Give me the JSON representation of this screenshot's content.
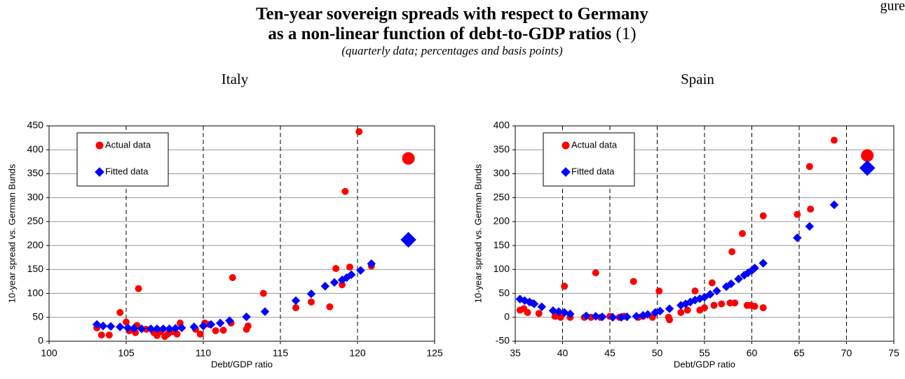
{
  "figure_label": "gure",
  "title_lines": [
    "Ten-year sovereign spreads with respect to Germany",
    "as a non-linear function of debt-to-GDP ratios"
  ],
  "note_marker": "(1)",
  "subtitle": "(quarterly data; percentages and basis points)",
  "chart_data": [
    {
      "type": "scatter",
      "title": "Italy",
      "x_label": "Debt/GDP ratio",
      "y_label": "10-year spread vs. German Bunds",
      "xlim": [
        100,
        125
      ],
      "xticks": [
        100,
        105,
        110,
        115,
        120,
        125
      ],
      "ylim": [
        0,
        450
      ],
      "yticks": [
        0,
        50,
        100,
        150,
        200,
        250,
        300,
        350,
        400,
        450
      ],
      "grid": true,
      "legend": "upper left",
      "series": [
        {
          "name": "Actual data",
          "color": "#ff0000",
          "marker": "circle",
          "x": [
            103.1,
            103.4,
            103.9,
            104.6,
            105.0,
            105.2,
            105.6,
            105.7,
            105.8,
            106.3,
            106.8,
            107.0,
            107.2,
            107.5,
            107.7,
            108.0,
            108.3,
            108.5,
            109.5,
            109.8,
            110.1,
            110.4,
            110.8,
            111.3,
            111.8,
            111.9,
            112.8,
            112.9,
            113.9,
            116.0,
            117.0,
            118.2,
            118.6,
            119.0,
            119.2,
            119.5,
            120.1,
            120.9,
            123.3
          ],
          "values": [
            28,
            13,
            13,
            60,
            40,
            22,
            18,
            33,
            110,
            25,
            18,
            12,
            20,
            10,
            15,
            20,
            15,
            38,
            25,
            15,
            38,
            35,
            22,
            23,
            38,
            133,
            25,
            32,
            100,
            70,
            82,
            72,
            152,
            118,
            313,
            155,
            438,
            157,
            382
          ]
        },
        {
          "name": "Fitted data",
          "color": "#0000ff",
          "marker": "diamond",
          "x": [
            103.1,
            103.5,
            104.0,
            104.6,
            105.1,
            105.5,
            106.0,
            106.6,
            107.0,
            107.4,
            107.8,
            108.2,
            108.6,
            109.4,
            110.0,
            110.5,
            111.1,
            111.7,
            112.8,
            114.0,
            116.0,
            117.0,
            117.9,
            118.5,
            119.0,
            119.3,
            119.6,
            120.2,
            120.9,
            123.3
          ],
          "values": [
            35,
            32,
            31,
            30,
            28,
            27,
            26,
            26,
            26,
            26,
            26,
            27,
            28,
            30,
            32,
            35,
            38,
            43,
            51,
            62,
            85,
            99,
            115,
            123,
            128,
            133,
            139,
            148,
            162,
            212
          ]
        }
      ]
    },
    {
      "type": "scatter",
      "title": "Spain",
      "x_label": "Debt/GDP ratio",
      "y_label": "10-year spread vs. German Bunds",
      "xlim": [
        35,
        75
      ],
      "xticks": [
        35,
        40,
        45,
        50,
        55,
        60,
        65,
        70,
        75
      ],
      "ylim": [
        -50,
        400
      ],
      "yticks": [
        -50,
        0,
        50,
        100,
        150,
        200,
        250,
        300,
        350,
        400
      ],
      "grid": true,
      "legend": "upper left",
      "series": [
        {
          "name": "Actual data",
          "color": "#ff0000",
          "marker": "circle",
          "x": [
            35.5,
            35.9,
            36.3,
            36.8,
            37.5,
            39.2,
            39.8,
            40.2,
            40.8,
            42.3,
            43.0,
            43.5,
            44.0,
            45.0,
            46.0,
            46.5,
            47.5,
            48.0,
            48.5,
            49.5,
            50.2,
            51.2,
            51.3,
            52.5,
            53.2,
            54.0,
            54.5,
            55.0,
            55.8,
            56.0,
            56.8,
            57.7,
            57.9,
            58.2,
            59.0,
            59.5,
            59.9,
            60.3,
            61.2,
            61.2,
            64.8,
            66.1,
            66.2,
            68.7,
            72.2
          ],
          "values": [
            15,
            18,
            10,
            30,
            8,
            2,
            0,
            65,
            0,
            0,
            0,
            93,
            0,
            2,
            0,
            2,
            75,
            0,
            2,
            0,
            55,
            0,
            -5,
            10,
            15,
            55,
            15,
            20,
            72,
            25,
            28,
            30,
            137,
            30,
            175,
            25,
            25,
            23,
            20,
            212,
            215,
            315,
            226,
            370,
            338
          ]
        },
        {
          "name": "Fitted data",
          "color": "#0000ff",
          "marker": "diamond",
          "x": [
            35.5,
            36.0,
            36.5,
            37.0,
            37.8,
            39.0,
            39.6,
            40.2,
            40.8,
            42.5,
            43.5,
            44.2,
            45.3,
            46.2,
            46.8,
            47.8,
            48.5,
            49.0,
            49.8,
            50.3,
            51.3,
            52.5,
            53.0,
            53.5,
            54.0,
            54.5,
            55.0,
            55.6,
            56.3,
            57.3,
            57.8,
            58.6,
            59.2,
            59.6,
            60.0,
            60.3,
            61.2,
            64.8,
            66.1,
            68.7,
            72.2
          ],
          "values": [
            38,
            35,
            32,
            28,
            22,
            14,
            12,
            10,
            7,
            3,
            2,
            1,
            0,
            0,
            1,
            2,
            4,
            6,
            10,
            13,
            18,
            25,
            28,
            32,
            36,
            39,
            42,
            48,
            55,
            64,
            70,
            80,
            88,
            93,
            98,
            103,
            113,
            166,
            190,
            235,
            312
          ]
        }
      ]
    }
  ]
}
